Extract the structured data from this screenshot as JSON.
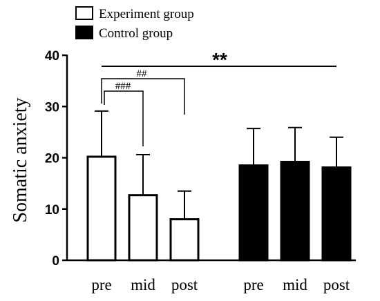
{
  "chart_data": {
    "type": "bar",
    "ylabel": "Somatic anxiety",
    "ylim": [
      0,
      40
    ],
    "yticks": [
      0,
      10,
      20,
      30,
      40
    ],
    "categories": [
      "pre",
      "mid",
      "post"
    ],
    "legend_position": "top-left",
    "series": [
      {
        "name": "Experiment group",
        "fill": "#ffffff",
        "values": [
          20.2,
          12.7,
          8.0
        ],
        "errors": [
          8.9,
          7.9,
          5.5
        ]
      },
      {
        "name": "Control group",
        "fill": "#000000",
        "values": [
          18.5,
          19.2,
          18.1
        ],
        "errors": [
          7.2,
          6.7,
          5.9
        ]
      }
    ],
    "annotations": [
      {
        "text": "**",
        "from": [
          "Experiment group",
          "pre"
        ],
        "to": [
          "Control group",
          "post"
        ]
      },
      {
        "text": "##",
        "from": [
          "Experiment group",
          "pre"
        ],
        "to": [
          "Experiment group",
          "post"
        ]
      },
      {
        "text": "###",
        "from": [
          "Experiment group",
          "pre"
        ],
        "to": [
          "Experiment group",
          "mid"
        ]
      }
    ]
  }
}
